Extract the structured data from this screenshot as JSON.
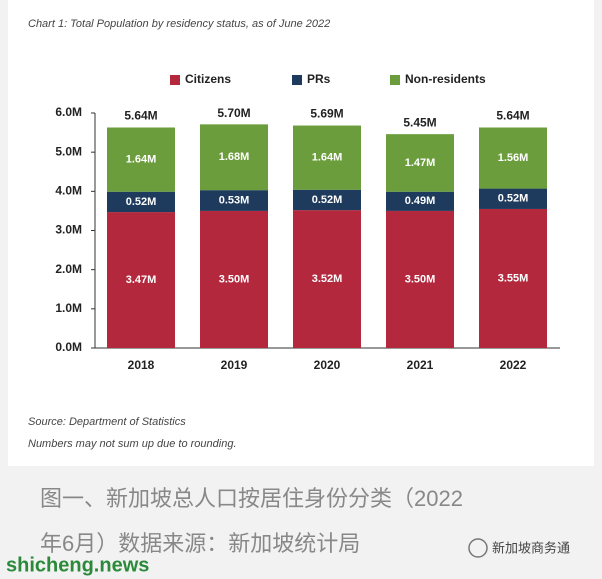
{
  "chart_data": {
    "type": "stacked_bar",
    "title": "Chart 1: Total Population by residency status, as of June 2022",
    "categories": [
      "2018",
      "2019",
      "2020",
      "2021",
      "2022"
    ],
    "series": [
      {
        "name": "Citizens",
        "color": "#b3283d",
        "values": [
          3.47,
          3.5,
          3.52,
          3.5,
          3.55
        ],
        "value_labels": [
          "3.47M",
          "3.50M",
          "3.52M",
          "3.50M",
          "3.55M"
        ]
      },
      {
        "name": "PRs",
        "color": "#1e3a5c",
        "values": [
          0.52,
          0.53,
          0.52,
          0.49,
          0.52
        ],
        "value_labels": [
          "0.52M",
          "0.53M",
          "0.52M",
          "0.49M",
          "0.52M"
        ]
      },
      {
        "name": "Non-residents",
        "color": "#6b9d3c",
        "values": [
          1.64,
          1.68,
          1.64,
          1.47,
          1.56
        ],
        "value_labels": [
          "1.64M",
          "1.68M",
          "1.64M",
          "1.47M",
          "1.56M"
        ]
      }
    ],
    "totals": {
      "values": [
        5.64,
        5.7,
        5.69,
        5.45,
        5.64
      ],
      "value_labels": [
        "5.64M",
        "5.70M",
        "5.69M",
        "5.45M",
        "5.64M"
      ]
    },
    "ylim": [
      0,
      6
    ],
    "yticks": [
      {
        "value": 0,
        "label": "0.0M"
      },
      {
        "value": 1,
        "label": "1.0M"
      },
      {
        "value": 2,
        "label": "2.0M"
      },
      {
        "value": 3,
        "label": "3.0M"
      },
      {
        "value": 4,
        "label": "4.0M"
      },
      {
        "value": 5,
        "label": "5.0M"
      },
      {
        "value": 6,
        "label": "6.0M"
      }
    ],
    "grid": false,
    "legend_position": "top",
    "source": "Source: Department of Statistics",
    "note": "Numbers may not sum up due to rounding."
  },
  "caption": [
    "图一、新加坡总人口按居住身份分类（2022",
    "年6月）数据来源：新加坡统计局"
  ],
  "watermark": "shicheng.news",
  "logo_text": "新加坡商务通"
}
